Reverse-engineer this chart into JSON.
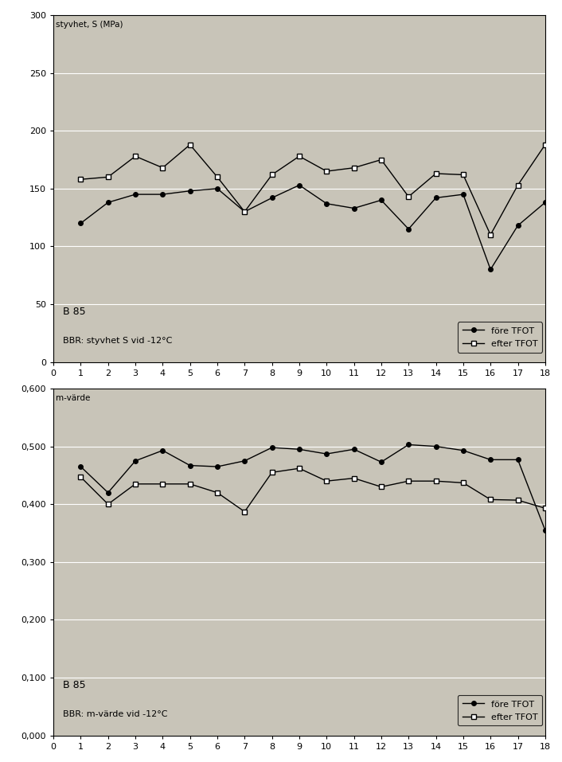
{
  "chart1": {
    "ylabel": "styvhet, S (MPa)",
    "annotation1": "B 85",
    "annotation2": "BBR: styvhet S vid -12°C",
    "legend1": "före TFOT",
    "legend2": "efter TFOT",
    "ylim": [
      0,
      300
    ],
    "yticks": [
      0,
      50,
      100,
      150,
      200,
      250,
      300
    ],
    "ytick_labels": [
      "0",
      "50",
      "100",
      "150",
      "200",
      "250",
      "300"
    ],
    "xlim": [
      0,
      18
    ],
    "xticks": [
      0,
      1,
      2,
      3,
      4,
      5,
      6,
      7,
      8,
      9,
      10,
      11,
      12,
      13,
      14,
      15,
      16,
      17,
      18
    ],
    "fore_x": [
      1,
      2,
      3,
      4,
      5,
      6,
      7,
      8,
      9,
      10,
      11,
      12,
      13,
      14,
      15,
      16,
      17,
      18
    ],
    "fore_y": [
      120,
      138,
      145,
      145,
      148,
      150,
      130,
      142,
      153,
      137,
      133,
      140,
      115,
      142,
      145,
      80,
      118,
      138
    ],
    "efter_x": [
      1,
      2,
      3,
      4,
      5,
      6,
      7,
      8,
      9,
      10,
      11,
      12,
      13,
      14,
      15,
      16,
      17,
      18
    ],
    "efter_y": [
      158,
      160,
      178,
      168,
      188,
      160,
      130,
      162,
      178,
      165,
      168,
      175,
      143,
      163,
      162,
      110,
      153,
      188
    ]
  },
  "chart2": {
    "ylabel": "m-värde",
    "annotation1": "B 85",
    "annotation2": "BBR: m-värde vid -12°C",
    "legend1": "före TFOT",
    "legend2": "efter TFOT",
    "ylim": [
      0.0,
      0.6
    ],
    "ytick_labels": [
      "0,000",
      "0,100",
      "0,200",
      "0,300",
      "0,400",
      "0,500",
      "0,600"
    ],
    "ytick_values": [
      0.0,
      0.1,
      0.2,
      0.3,
      0.4,
      0.5,
      0.6
    ],
    "xlim": [
      0,
      18
    ],
    "xticks": [
      0,
      1,
      2,
      3,
      4,
      5,
      6,
      7,
      8,
      9,
      10,
      11,
      12,
      13,
      14,
      15,
      16,
      17,
      18
    ],
    "fore_x": [
      1,
      2,
      3,
      4,
      5,
      6,
      7,
      8,
      9,
      10,
      11,
      12,
      13,
      14,
      15,
      16,
      17,
      18
    ],
    "fore_y": [
      0.465,
      0.42,
      0.475,
      0.493,
      0.467,
      0.465,
      0.475,
      0.498,
      0.495,
      0.487,
      0.495,
      0.473,
      0.503,
      0.5,
      0.493,
      0.477,
      0.477,
      0.355
    ],
    "efter_x": [
      1,
      2,
      3,
      4,
      5,
      6,
      7,
      8,
      9,
      10,
      11,
      12,
      13,
      14,
      15,
      16,
      17,
      18
    ],
    "efter_y": [
      0.447,
      0.4,
      0.435,
      0.435,
      0.435,
      0.42,
      0.387,
      0.455,
      0.462,
      0.44,
      0.445,
      0.43,
      0.44,
      0.44,
      0.437,
      0.408,
      0.407,
      0.393
    ]
  },
  "bg_color": "#c8c4b8",
  "grid_color": "#ffffff",
  "line_color": "#000000",
  "fig_bg": "#ffffff",
  "legend_facecolor": "#c8c4b8",
  "spine_color": "#000000"
}
